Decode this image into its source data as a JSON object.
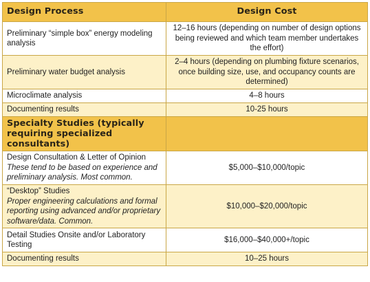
{
  "header": {
    "col1": "Design Process",
    "col2": "Design Cost"
  },
  "rows_process": [
    {
      "task": "Preliminary “simple box” energy modeling analysis",
      "cost": "12–16 hours (depending on number of design options being reviewed and which team member undertakes the effort)"
    },
    {
      "task": "Preliminary water budget analysis",
      "cost": "2–4 hours (depending on plumbing fixture scenarios, once building size, use, and occupancy counts are determined)"
    },
    {
      "task": "Microclimate analysis",
      "cost": "4–8 hours"
    },
    {
      "task": "Documenting results",
      "cost": "10-25 hours"
    }
  ],
  "section2": {
    "title": "Specialty Studies (typically requiring specialized consultants)"
  },
  "rows_specialty": [
    {
      "task": "Design Consultation & Letter of Opinion",
      "note": "These tend to be based on experience and preliminary analysis. Most common.",
      "cost": "$5,000–$10,000/topic"
    },
    {
      "task": "“Desktop” Studies",
      "note": "Proper engineering calculations and formal reporting using advanced and/or proprietary software/data. Common.",
      "cost": "$10,000–$20,000/topic"
    },
    {
      "task": "Detail Studies Onsite and/or Laboratory Testing",
      "note": "",
      "cost": "$16,000–$40,000+/topic"
    },
    {
      "task": "Documenting results",
      "note": "",
      "cost": "10–25 hours"
    }
  ]
}
